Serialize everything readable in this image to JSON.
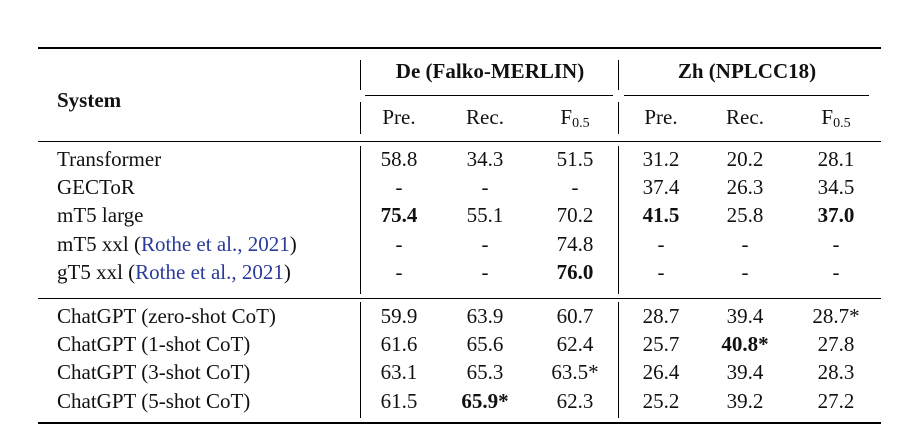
{
  "header": {
    "system_label": "System",
    "group_de": "De (Falko-MERLIN)",
    "group_zh": "Zh (NPLCC18)",
    "col_pre": "Pre.",
    "col_rec": "Rec.",
    "col_f_base": "F",
    "col_f_sub": "0.5"
  },
  "rows": [
    {
      "system": "Transformer",
      "cite": "",
      "cells": [
        "58.8",
        "34.3",
        "51.5",
        "31.2",
        "20.2",
        "28.1"
      ],
      "bold": [
        false,
        false,
        false,
        false,
        false,
        false
      ]
    },
    {
      "system": "GECToR",
      "cite": "",
      "cells": [
        "-",
        "-",
        "-",
        "37.4",
        "26.3",
        "34.5"
      ],
      "bold": [
        false,
        false,
        false,
        false,
        false,
        false
      ]
    },
    {
      "system": "mT5 large",
      "cite": "",
      "cells": [
        "75.4",
        "55.1",
        "70.2",
        "41.5",
        "25.8",
        "37.0"
      ],
      "bold": [
        true,
        false,
        false,
        true,
        false,
        true
      ]
    },
    {
      "system": "mT5 xxl (",
      "cite": "Rothe et al., 2021",
      "close": ")",
      "cells": [
        "-",
        "-",
        "74.8",
        "-",
        "-",
        "-"
      ],
      "bold": [
        false,
        false,
        false,
        false,
        false,
        false
      ]
    },
    {
      "system": "gT5 xxl (",
      "cite": "Rothe et al., 2021",
      "close": ")",
      "cells": [
        "-",
        "-",
        "76.0",
        "-",
        "-",
        "-"
      ],
      "bold": [
        false,
        false,
        true,
        false,
        false,
        false
      ]
    },
    {
      "system": "ChatGPT (zero-shot CoT)",
      "cite": "",
      "cells": [
        "59.9",
        "63.9",
        "60.7",
        "28.7",
        "39.4",
        "28.7*"
      ],
      "bold": [
        false,
        false,
        false,
        false,
        false,
        false
      ]
    },
    {
      "system": "ChatGPT (1-shot CoT)",
      "cite": "",
      "cells": [
        "61.6",
        "65.6",
        "62.4",
        "25.7",
        "40.8*",
        "27.8"
      ],
      "bold": [
        false,
        false,
        false,
        false,
        true,
        false
      ]
    },
    {
      "system": "ChatGPT (3-shot CoT)",
      "cite": "",
      "cells": [
        "63.1",
        "65.3",
        "63.5*",
        "26.4",
        "39.4",
        "28.3"
      ],
      "bold": [
        false,
        false,
        false,
        false,
        false,
        false
      ]
    },
    {
      "system": "ChatGPT (5-shot CoT)",
      "cite": "",
      "cells": [
        "61.5",
        "65.9*",
        "62.3",
        "25.2",
        "39.2",
        "27.2"
      ],
      "bold": [
        false,
        true,
        false,
        false,
        false,
        false
      ]
    }
  ]
}
